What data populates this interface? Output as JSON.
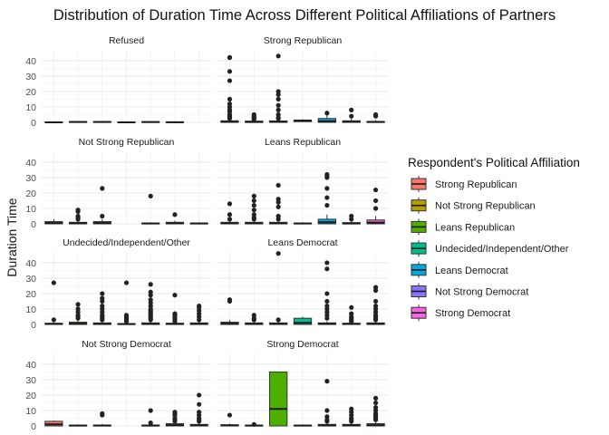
{
  "chart_data": {
    "type": "boxplot",
    "title": "Distribution of Duration Time Across Different Political Affiliations of Partners",
    "ylabel": "Duration Time",
    "xlabel": "",
    "ylim": [
      0,
      47
    ],
    "yticks": [
      0,
      10,
      20,
      30,
      40
    ],
    "grid": true,
    "legend": {
      "title": "Respondent's Political Affiliation",
      "position": "right",
      "entries": [
        {
          "name": "Strong Republican",
          "color": "#F8766D"
        },
        {
          "name": "Not Strong Republican",
          "color": "#B79F00"
        },
        {
          "name": "Leans Republican",
          "color": "#4DAF00"
        },
        {
          "name": "Undecided/Independent/Other",
          "color": "#00BE8B"
        },
        {
          "name": "Leans Democrat",
          "color": "#00A8E0"
        },
        {
          "name": "Not Strong Democrat",
          "color": "#8B73FF"
        },
        {
          "name": "Strong Democrat",
          "color": "#F564E3"
        }
      ]
    },
    "panels": [
      {
        "title": "Refused",
        "boxes": [
          {
            "cat": 0,
            "q1": 0,
            "med": 0,
            "q3": 0.3,
            "lo": 0,
            "hi": 0.5,
            "out": []
          },
          {
            "cat": 1,
            "q1": 0,
            "med": 0.2,
            "q3": 0.5,
            "lo": 0,
            "hi": 0.8,
            "out": []
          },
          {
            "cat": 2,
            "q1": 0,
            "med": 0.2,
            "q3": 0.5,
            "lo": 0,
            "hi": 0.8,
            "out": []
          },
          {
            "cat": 3,
            "q1": 0,
            "med": 0,
            "q3": 0.3,
            "lo": 0,
            "hi": 0.5,
            "out": []
          },
          {
            "cat": 4,
            "q1": 0,
            "med": 0.2,
            "q3": 0.4,
            "lo": 0,
            "hi": 0.7,
            "out": []
          },
          {
            "cat": 5,
            "q1": 0,
            "med": 0.1,
            "q3": 0.3,
            "lo": 0,
            "hi": 0.5,
            "out": []
          }
        ]
      },
      {
        "title": "Strong Republican",
        "boxes": [
          {
            "cat": 0,
            "q1": 0,
            "med": 0.3,
            "q3": 1,
            "lo": 0,
            "hi": 2,
            "out": [
              42,
              42,
              33,
              27,
              15,
              12,
              10,
              8,
              7,
              5,
              4,
              3,
              2.5
            ]
          },
          {
            "cat": 1,
            "q1": 0,
            "med": 0.2,
            "q3": 0.8,
            "lo": 0,
            "hi": 1.5,
            "out": [
              5,
              4,
              3,
              2.5,
              2
            ]
          },
          {
            "cat": 2,
            "q1": 0,
            "med": 0.3,
            "q3": 0.9,
            "lo": 0,
            "hi": 1.8,
            "out": [
              43,
              20,
              18,
              15,
              11,
              8,
              5,
              3,
              2.5
            ]
          },
          {
            "cat": 3,
            "q1": 0.5,
            "med": 1,
            "q3": 1.5,
            "lo": 0.3,
            "hi": 2,
            "out": []
          },
          {
            "cat": 4,
            "q1": 0,
            "med": 0.7,
            "q3": 2.5,
            "lo": 0,
            "hi": 5,
            "out": [
              6
            ]
          },
          {
            "cat": 5,
            "q1": 0,
            "med": 0.3,
            "q3": 1,
            "lo": 0,
            "hi": 2.5,
            "out": [
              8,
              4
            ]
          },
          {
            "cat": 6,
            "q1": 0,
            "med": 0.2,
            "q3": 0.6,
            "lo": 0,
            "hi": 1.5,
            "out": [
              5,
              4
            ]
          }
        ]
      },
      {
        "title": "Not Strong Republican",
        "boxes": [
          {
            "cat": 0,
            "q1": 0,
            "med": 0.5,
            "q3": 1.5,
            "lo": 0,
            "hi": 3,
            "out": []
          },
          {
            "cat": 1,
            "q1": 0,
            "med": 0.3,
            "q3": 1,
            "lo": 0,
            "hi": 2,
            "out": [
              9,
              8,
              5,
              4,
              3
            ]
          },
          {
            "cat": 2,
            "q1": 0,
            "med": 0.5,
            "q3": 1.5,
            "lo": 0,
            "hi": 3,
            "out": [
              23,
              5
            ]
          },
          {
            "cat": 4,
            "q1": 0,
            "med": 0.2,
            "q3": 0.5,
            "lo": 0,
            "hi": 1,
            "out": [
              18
            ]
          },
          {
            "cat": 5,
            "q1": 0,
            "med": 0.3,
            "q3": 1,
            "lo": 0,
            "hi": 2,
            "out": [
              6
            ]
          },
          {
            "cat": 6,
            "q1": 0,
            "med": 0.2,
            "q3": 0.5,
            "lo": 0,
            "hi": 1,
            "out": []
          }
        ]
      },
      {
        "title": "Leans Republican",
        "boxes": [
          {
            "cat": 0,
            "q1": 0,
            "med": 0.3,
            "q3": 1,
            "lo": 0,
            "hi": 2,
            "out": [
              13,
              6,
              3
            ]
          },
          {
            "cat": 1,
            "q1": 0,
            "med": 0.3,
            "q3": 1,
            "lo": 0,
            "hi": 2,
            "out": [
              18,
              15,
              12,
              9,
              6,
              4,
              3
            ]
          },
          {
            "cat": 2,
            "q1": 0,
            "med": 0.3,
            "q3": 1,
            "lo": 0,
            "hi": 2,
            "out": [
              25,
              16,
              14,
              11,
              5,
              3
            ]
          },
          {
            "cat": 3,
            "q1": 0,
            "med": 0.2,
            "q3": 0.5,
            "lo": 0,
            "hi": 1,
            "out": []
          },
          {
            "cat": 4,
            "q1": 0,
            "med": 1,
            "q3": 3,
            "lo": 0,
            "hi": 6,
            "out": [
              32,
              31,
              30,
              23,
              17,
              12
            ]
          },
          {
            "cat": 5,
            "q1": 0,
            "med": 0.2,
            "q3": 0.8,
            "lo": 0,
            "hi": 1.5,
            "out": [
              5,
              3
            ]
          },
          {
            "cat": 6,
            "q1": 0,
            "med": 0.8,
            "q3": 2.5,
            "lo": 0,
            "hi": 5,
            "out": [
              22,
              15,
              10
            ]
          }
        ]
      },
      {
        "title": "Undecided/Independent/Other",
        "boxes": [
          {
            "cat": 0,
            "q1": 0,
            "med": 0.3,
            "q3": 0.8,
            "lo": 0,
            "hi": 1.5,
            "out": [
              27,
              3
            ]
          },
          {
            "cat": 1,
            "q1": 0,
            "med": 0.5,
            "q3": 1.5,
            "lo": 0,
            "hi": 3,
            "out": [
              13,
              10,
              8,
              6,
              5,
              4
            ]
          },
          {
            "cat": 2,
            "q1": 0,
            "med": 0.3,
            "q3": 1,
            "lo": 0,
            "hi": 2,
            "out": [
              20,
              17,
              15,
              12,
              10,
              8,
              6,
              5,
              4,
              3
            ]
          },
          {
            "cat": 3,
            "q1": 0,
            "med": 0.2,
            "q3": 0.6,
            "lo": 0,
            "hi": 1.2,
            "out": [
              27,
              6,
              5,
              4,
              3,
              2
            ]
          },
          {
            "cat": 4,
            "q1": 0,
            "med": 0.3,
            "q3": 1,
            "lo": 0,
            "hi": 2,
            "out": [
              26,
              21,
              19,
              16,
              14,
              12,
              10,
              9,
              8,
              7,
              6,
              5,
              4,
              3
            ]
          },
          {
            "cat": 5,
            "q1": 0,
            "med": 0.3,
            "q3": 0.8,
            "lo": 0,
            "hi": 1.5,
            "out": [
              19,
              7,
              6,
              5,
              4,
              3,
              2
            ]
          },
          {
            "cat": 6,
            "q1": 0,
            "med": 0.3,
            "q3": 1,
            "lo": 0,
            "hi": 2,
            "out": [
              12,
              11,
              9,
              7,
              5,
              3
            ]
          }
        ]
      },
      {
        "title": "Leans Democrat",
        "boxes": [
          {
            "cat": 0,
            "q1": 0,
            "med": 0.5,
            "q3": 1.5,
            "lo": 0,
            "hi": 3,
            "out": [
              16,
              15
            ]
          },
          {
            "cat": 1,
            "q1": 0,
            "med": 0.3,
            "q3": 1,
            "lo": 0,
            "hi": 2,
            "out": [
              6,
              4,
              3
            ]
          },
          {
            "cat": 2,
            "q1": 0,
            "med": 0.3,
            "q3": 1,
            "lo": 0,
            "hi": 2,
            "out": [
              46,
              3
            ]
          },
          {
            "cat": 3,
            "q1": 0,
            "med": 1,
            "q3": 4,
            "lo": 0,
            "hi": 5,
            "out": []
          },
          {
            "cat": 4,
            "q1": 0,
            "med": 0.3,
            "q3": 1,
            "lo": 0,
            "hi": 2,
            "out": [
              40,
              36,
              20,
              15,
              12,
              10,
              8,
              6,
              4
            ]
          },
          {
            "cat": 5,
            "q1": 0,
            "med": 0.3,
            "q3": 0.8,
            "lo": 0,
            "hi": 1.5,
            "out": [
              11,
              7,
              5,
              4,
              3,
              2
            ]
          },
          {
            "cat": 6,
            "q1": 0,
            "med": 0.3,
            "q3": 1,
            "lo": 0,
            "hi": 2,
            "out": [
              24,
              22,
              15,
              12,
              10,
              8,
              6,
              5,
              4,
              3
            ]
          }
        ]
      },
      {
        "title": "Not Strong Democrat",
        "boxes": [
          {
            "cat": 0,
            "q1": 0,
            "med": 1,
            "q3": 3,
            "lo": 0,
            "hi": 3.5,
            "out": []
          },
          {
            "cat": 1,
            "q1": 0,
            "med": 0.2,
            "q3": 0.5,
            "lo": 0,
            "hi": 1,
            "out": []
          },
          {
            "cat": 2,
            "q1": 0,
            "med": 0.2,
            "q3": 0.6,
            "lo": 0,
            "hi": 1.2,
            "out": [
              8,
              7
            ]
          },
          {
            "cat": 4,
            "q1": 0,
            "med": 0.2,
            "q3": 0.6,
            "lo": 0,
            "hi": 1.2,
            "out": [
              10,
              2
            ]
          },
          {
            "cat": 5,
            "q1": 0,
            "med": 0.5,
            "q3": 1.5,
            "lo": 0,
            "hi": 3,
            "out": [
              9,
              8,
              7,
              5,
              4,
              3
            ]
          },
          {
            "cat": 6,
            "q1": 0,
            "med": 0.3,
            "q3": 1,
            "lo": 0,
            "hi": 2,
            "out": [
              20,
              14,
              9,
              7,
              5,
              4,
              3
            ]
          }
        ]
      },
      {
        "title": "Strong Democrat",
        "boxes": [
          {
            "cat": 0,
            "q1": 0,
            "med": 0.3,
            "q3": 0.8,
            "lo": 0,
            "hi": 1.5,
            "out": [
              7
            ]
          },
          {
            "cat": 1,
            "q1": 0,
            "med": 0.2,
            "q3": 0.5,
            "lo": 0,
            "hi": 1,
            "out": [
              1
            ]
          },
          {
            "cat": 2,
            "q1": 0,
            "med": 11,
            "q3": 35,
            "lo": 0,
            "hi": 35,
            "out": []
          },
          {
            "cat": 3,
            "q1": 0,
            "med": 0.2,
            "q3": 0.5,
            "lo": 0,
            "hi": 1,
            "out": []
          },
          {
            "cat": 4,
            "q1": 0,
            "med": 0.3,
            "q3": 1,
            "lo": 0,
            "hi": 2,
            "out": [
              29,
              10,
              6,
              4,
              3
            ]
          },
          {
            "cat": 5,
            "q1": 0,
            "med": 0.3,
            "q3": 1,
            "lo": 0,
            "hi": 2,
            "out": [
              11,
              9,
              7,
              5,
              4,
              3
            ]
          },
          {
            "cat": 6,
            "q1": 0,
            "med": 0.5,
            "q3": 1.5,
            "lo": 0,
            "hi": 3,
            "out": [
              18,
              15,
              12,
              10,
              8,
              7,
              6,
              5,
              4
            ]
          }
        ]
      }
    ]
  }
}
